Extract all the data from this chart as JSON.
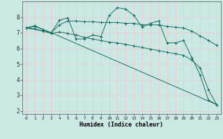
{
  "xlabel": "Humidex (Indice chaleur)",
  "bg_color": "#cce8e4",
  "grid_color": "#f0c8c8",
  "line_color": "#1a6e62",
  "xlim": [
    -0.5,
    23.5
  ],
  "ylim": [
    1.8,
    9.0
  ],
  "yticks": [
    2,
    3,
    4,
    5,
    6,
    7,
    8
  ],
  "xticks": [
    0,
    1,
    2,
    3,
    4,
    5,
    6,
    7,
    8,
    9,
    10,
    11,
    12,
    13,
    14,
    15,
    16,
    17,
    18,
    19,
    20,
    21,
    22,
    23
  ],
  "line1_x": [
    0,
    1,
    2,
    3,
    4,
    5,
    6,
    7,
    8,
    9,
    10,
    11,
    12,
    13,
    14,
    15,
    16,
    17,
    18,
    19,
    20,
    21,
    22,
    23
  ],
  "line1_y": [
    7.3,
    7.45,
    7.2,
    7.0,
    7.8,
    7.95,
    6.6,
    6.6,
    6.85,
    6.75,
    8.1,
    8.6,
    8.5,
    8.1,
    7.35,
    7.6,
    7.75,
    6.35,
    6.35,
    6.5,
    5.4,
    4.3,
    2.7,
    2.4
  ],
  "line2_x": [
    0,
    1,
    2,
    3,
    4,
    5,
    6,
    7,
    8,
    9,
    10,
    11,
    12,
    13,
    14,
    15,
    16,
    17,
    18,
    19,
    20,
    21,
    22,
    23
  ],
  "line2_y": [
    7.3,
    7.4,
    7.2,
    7.0,
    7.5,
    7.75,
    7.75,
    7.7,
    7.7,
    7.65,
    7.65,
    7.65,
    7.6,
    7.6,
    7.5,
    7.5,
    7.5,
    7.4,
    7.35,
    7.3,
    7.1,
    6.8,
    6.5,
    6.2
  ],
  "line3_x": [
    0,
    1,
    2,
    3,
    4,
    5,
    6,
    7,
    8,
    9,
    10,
    11,
    12,
    13,
    14,
    15,
    16,
    17,
    18,
    19,
    20,
    21,
    22,
    23
  ],
  "line3_y": [
    7.3,
    7.25,
    7.1,
    6.95,
    7.05,
    6.95,
    6.85,
    6.7,
    6.6,
    6.5,
    6.4,
    6.35,
    6.25,
    6.15,
    6.05,
    5.95,
    5.85,
    5.75,
    5.65,
    5.55,
    5.25,
    4.75,
    3.35,
    2.4
  ],
  "line4_x": [
    0,
    3,
    23
  ],
  "line4_y": [
    7.3,
    7.0,
    2.4
  ]
}
